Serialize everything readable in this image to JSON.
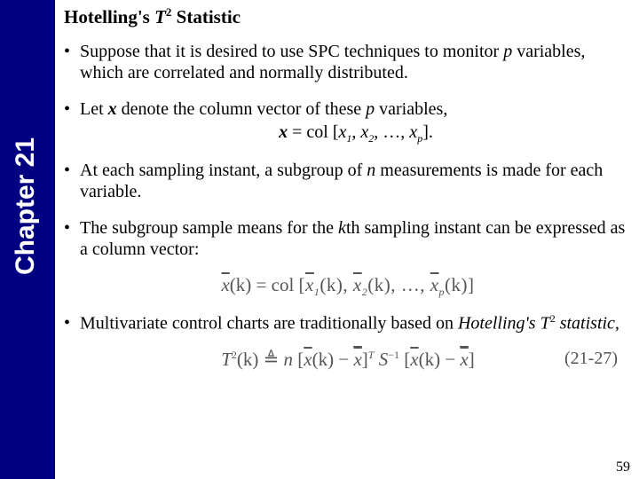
{
  "sidebar": {
    "label": "Chapter 21",
    "bg_color": "#000080",
    "text_color": "#ffffff"
  },
  "title": {
    "prefix": "Hotelling's ",
    "var": "T",
    "sup": "2",
    "suffix": " Statistic"
  },
  "bullets": {
    "b1": "Suppose that it is desired to use SPC techniques to monitor ",
    "b1_p": "p",
    "b1_rest": " variables, which are correlated and normally distributed.",
    "b2a": "Let ",
    "b2_x": "x",
    "b2b": " denote the column vector of these ",
    "b2_p": "p",
    "b2c": " variables,",
    "b2_eq_lhs": "x",
    "b2_eq_mid": " = col [",
    "b2_terms": {
      "x1": "x",
      "s1": "1",
      "x2": "x",
      "s2": "2",
      "dots": ", …, ",
      "xp": "x",
      "sp": "p"
    },
    "b2_eq_end": "].",
    "b3a": "At each sampling instant, a subgroup of ",
    "b3_n": "n",
    "b3b": " measurements is made for each variable.",
    "b4a": "The subgroup sample means for the ",
    "b4_k": "k",
    "b4b": "th sampling instant can be expressed as a column vector:",
    "b5a": "Multivariate control charts are traditionally based on ",
    "b5_em": "Hotelling's T",
    "b5_sup": "2",
    "b5_em2": " statistic,"
  },
  "formula1": {
    "lhs_var": "x",
    "lhs_arg": "(k) = col",
    "open": "[",
    "t1": "x",
    "s1": "1",
    "arg1": "(k), ",
    "t2": "x",
    "s2": "2",
    "arg2": "(k), …, ",
    "tp": "x",
    "sp": "p",
    "argp": "(k)",
    "close": "]"
  },
  "formula2": {
    "T": "T",
    "sup2": "2",
    "argk": "(k)",
    "eq": " ≜ ",
    "n": "n",
    "open": "[",
    "xk": "x",
    "xk_arg": "(k) − ",
    "xbar2": "x",
    "close": "]",
    "supT": "T",
    "S": " S",
    "Sinv": "−1",
    "eqnum": "(21-27)"
  },
  "page_number": "59"
}
